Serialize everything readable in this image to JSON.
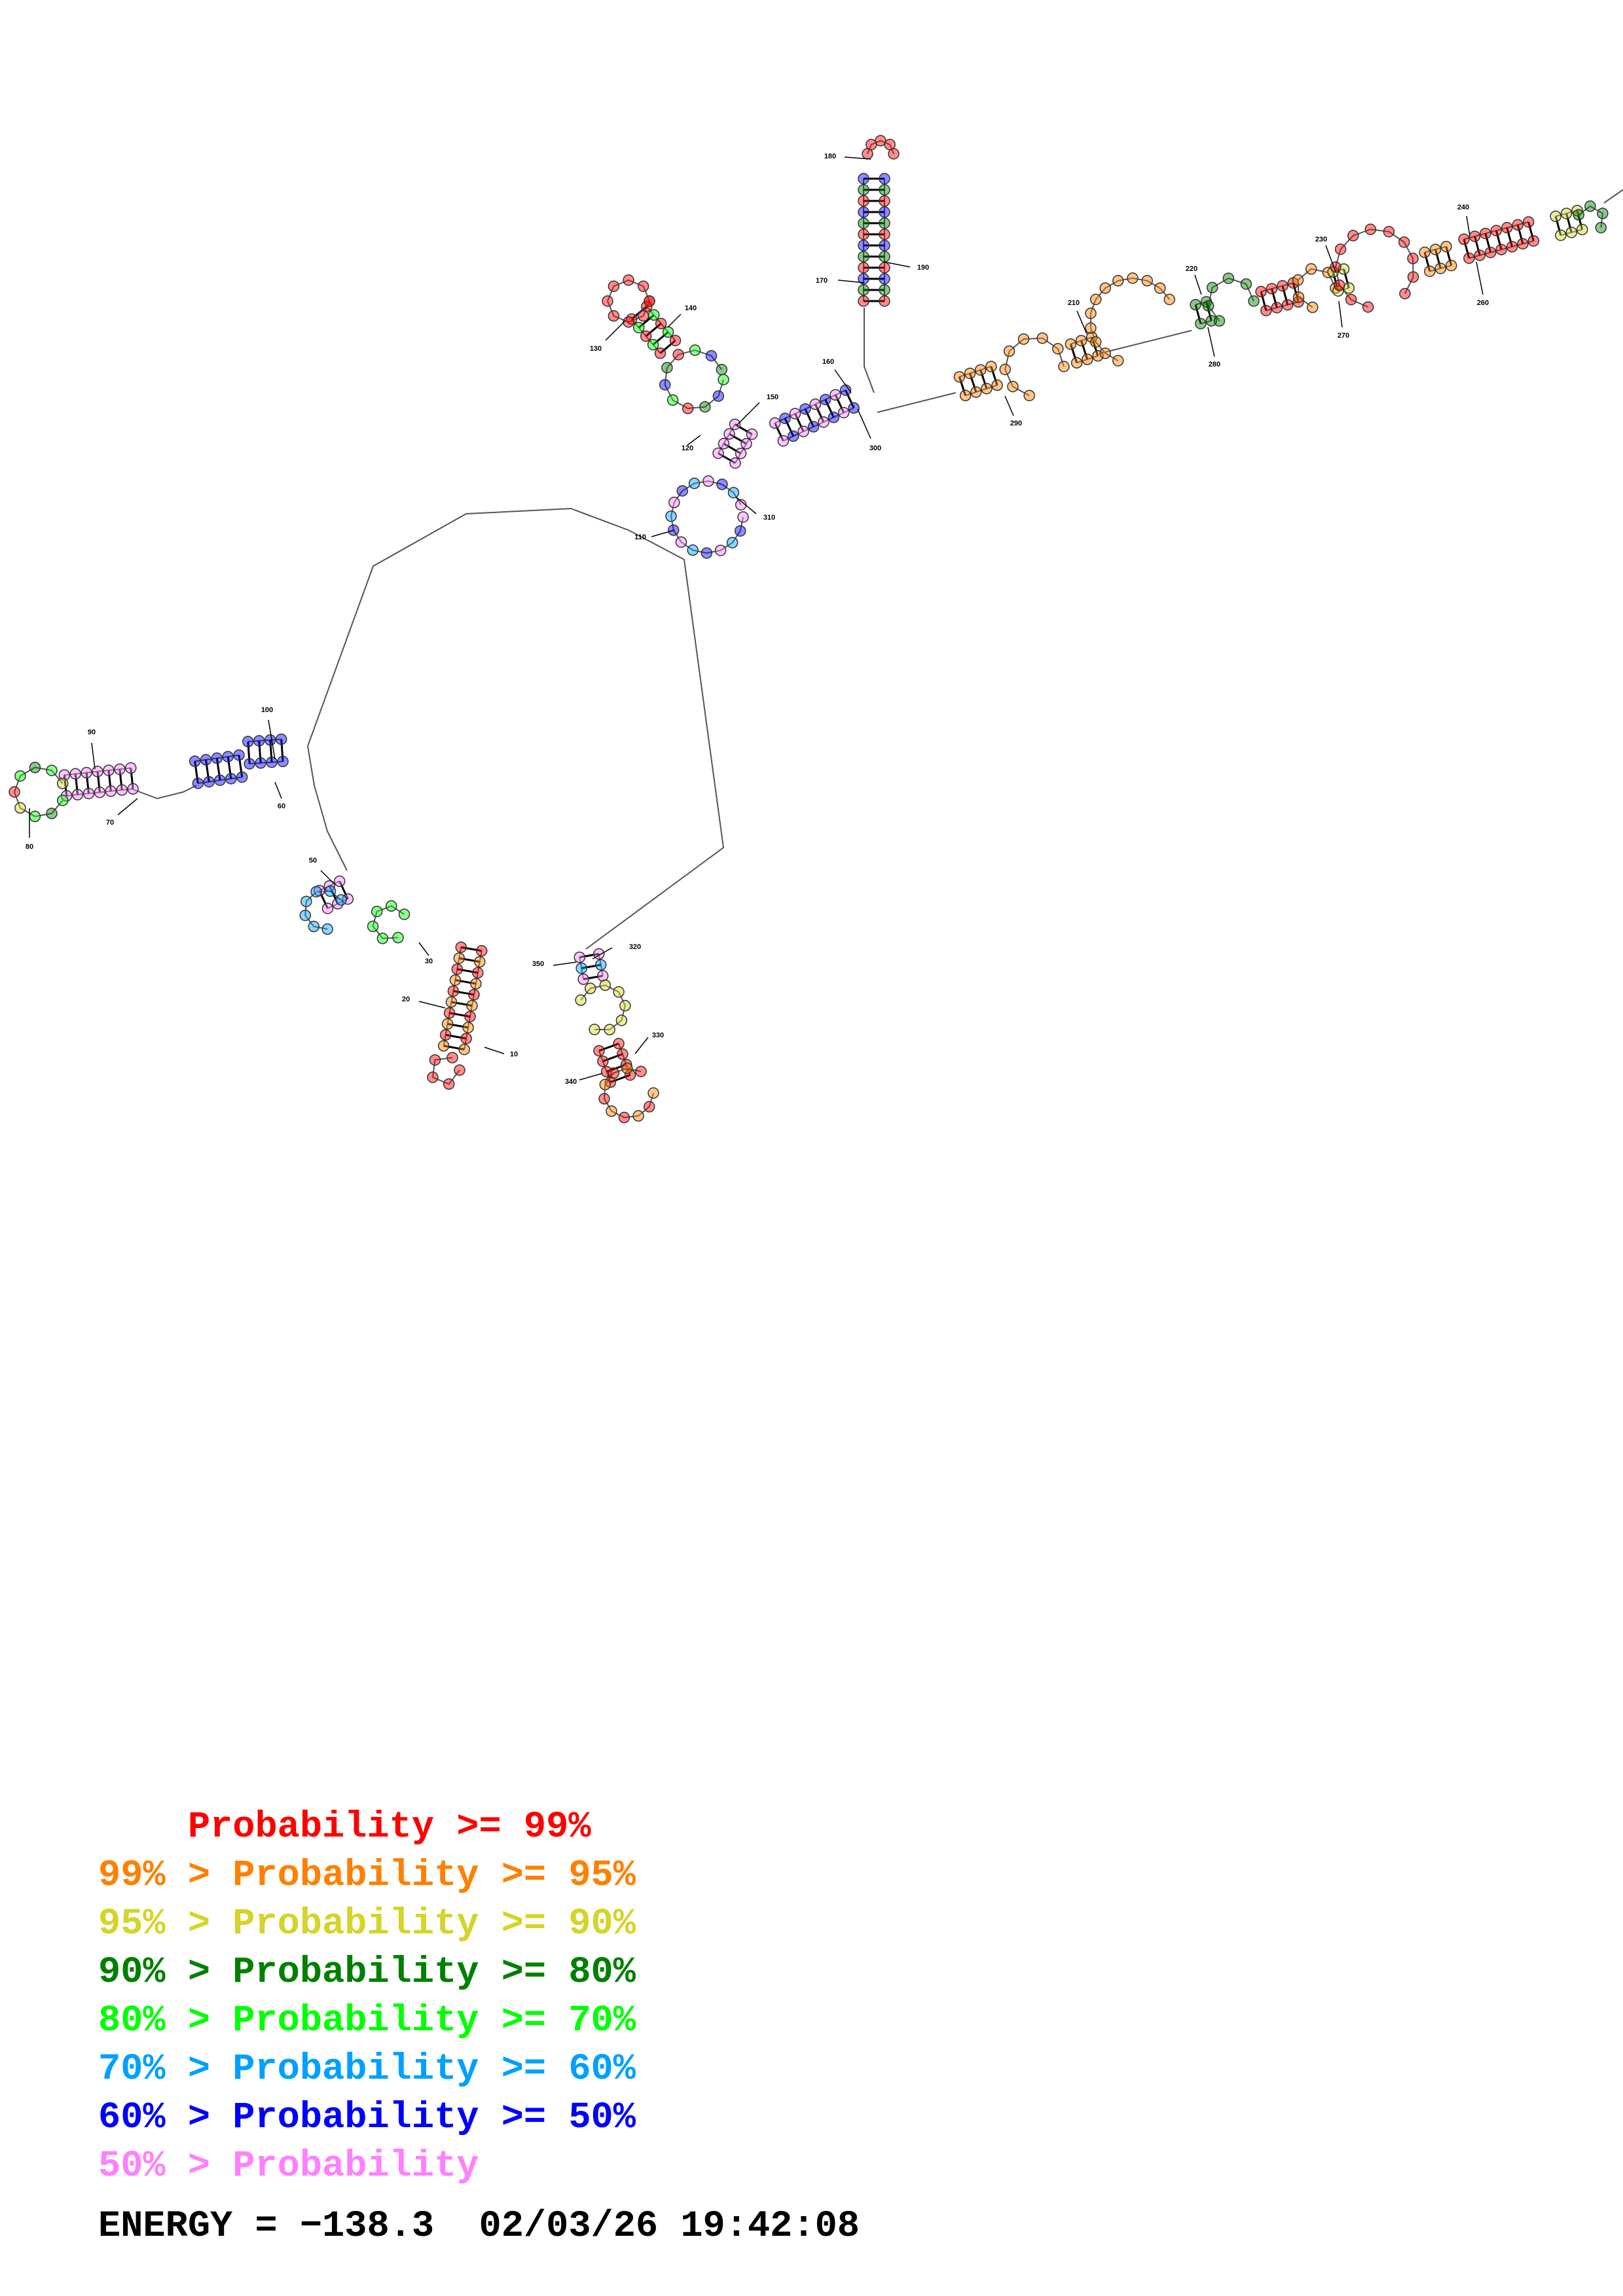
{
  "tick_labels": [
    "10",
    "20",
    "30",
    "50",
    "60",
    "70",
    "80",
    "90",
    "100",
    "110",
    "120",
    "130",
    "140",
    "150",
    "160",
    "170",
    "180",
    "190",
    "210",
    "220",
    "230",
    "240",
    "260",
    "270",
    "280",
    "290",
    "300",
    "310",
    "320",
    "330",
    "340",
    "350"
  ],
  "legend": [
    {
      "prefix": "    ",
      "text": "Probability >= 99%",
      "color": "#ff0000"
    },
    {
      "prefix": "",
      "text": "99% > Probability >= 95%",
      "color": "#ff8000"
    },
    {
      "prefix": "",
      "text": "95% > Probability >= 90%",
      "color": "#d4d42a"
    },
    {
      "prefix": "",
      "text": "90% > Probability >= 80%",
      "color": "#008000"
    },
    {
      "prefix": "",
      "text": "80% > Probability >= 70%",
      "color": "#00ff00"
    },
    {
      "prefix": "",
      "text": "70% > Probability >= 60%",
      "color": "#00a0ff"
    },
    {
      "prefix": "",
      "text": "60% > Probability >= 50%",
      "color": "#0000ff"
    },
    {
      "prefix": "",
      "text": "50% > Probability",
      "color": "#ff80ff"
    }
  ],
  "energy": "ENERGY = −138.3  02/03/26 19:42:08",
  "palette": {
    "p99": "#ff0000",
    "p95": "#ff8000",
    "p90": "#d4d42a",
    "p80": "#008000",
    "p70": "#00ff00",
    "p60": "#00a0ff",
    "p50": "#0000ff",
    "plt50": "#ff80ff"
  }
}
